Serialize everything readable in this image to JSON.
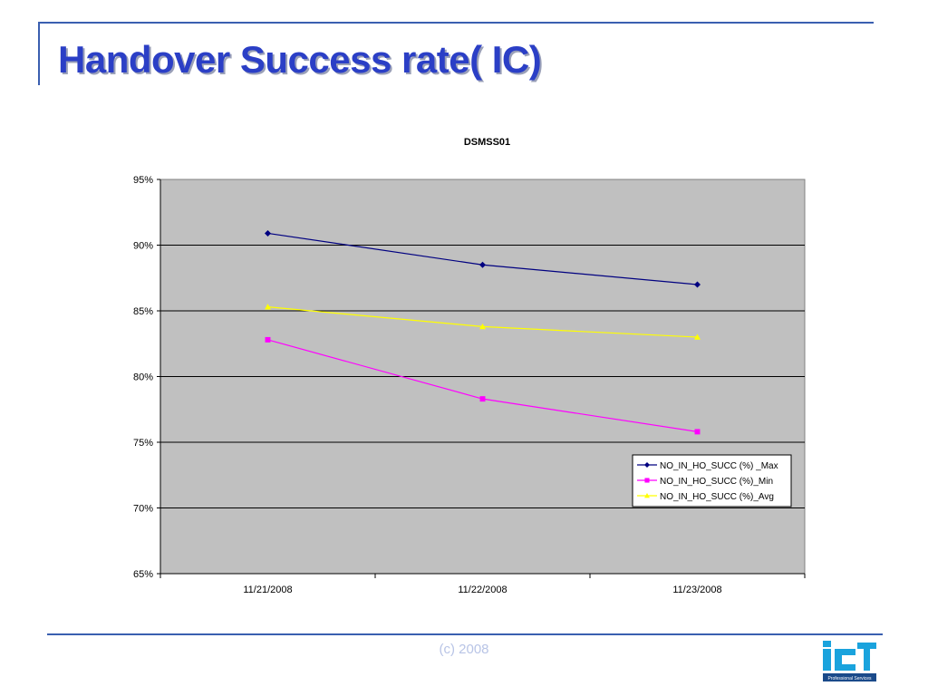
{
  "slide": {
    "title": "Handover Success rate( IC)",
    "footer": "(c) 2008",
    "logo_text": "ict",
    "logo_tagline": "Professional Services"
  },
  "colors": {
    "title": "#2b3fc6",
    "rule": "#3a5fb0",
    "plot_area": "#c0c0c0",
    "gridline": "#000000",
    "max": "#000080",
    "min": "#ff00ff",
    "avg": "#ffff00"
  },
  "chart_data": {
    "type": "line",
    "title": "DSMSS01",
    "xlabel": "",
    "ylabel": "",
    "categories": [
      "11/21/2008",
      "11/22/2008",
      "11/23/2008"
    ],
    "y_ticks": [
      "65%",
      "70%",
      "75%",
      "80%",
      "85%",
      "90%",
      "95%"
    ],
    "ylim": [
      65,
      95
    ],
    "y_step": 5,
    "grid": true,
    "legend_position": "bottom-right inside plot",
    "series": [
      {
        "name": "NO_IN_HO_SUCC (%) _Max",
        "values": [
          90.9,
          88.5,
          87.0
        ],
        "color": "#000080",
        "marker": "diamond"
      },
      {
        "name": "NO_IN_HO_SUCC (%)_Min",
        "values": [
          82.8,
          78.3,
          75.8
        ],
        "color": "#ff00ff",
        "marker": "square"
      },
      {
        "name": "NO_IN_HO_SUCC (%)_Avg",
        "values": [
          85.3,
          83.8,
          83.0
        ],
        "color": "#ffff00",
        "marker": "triangle"
      }
    ]
  }
}
